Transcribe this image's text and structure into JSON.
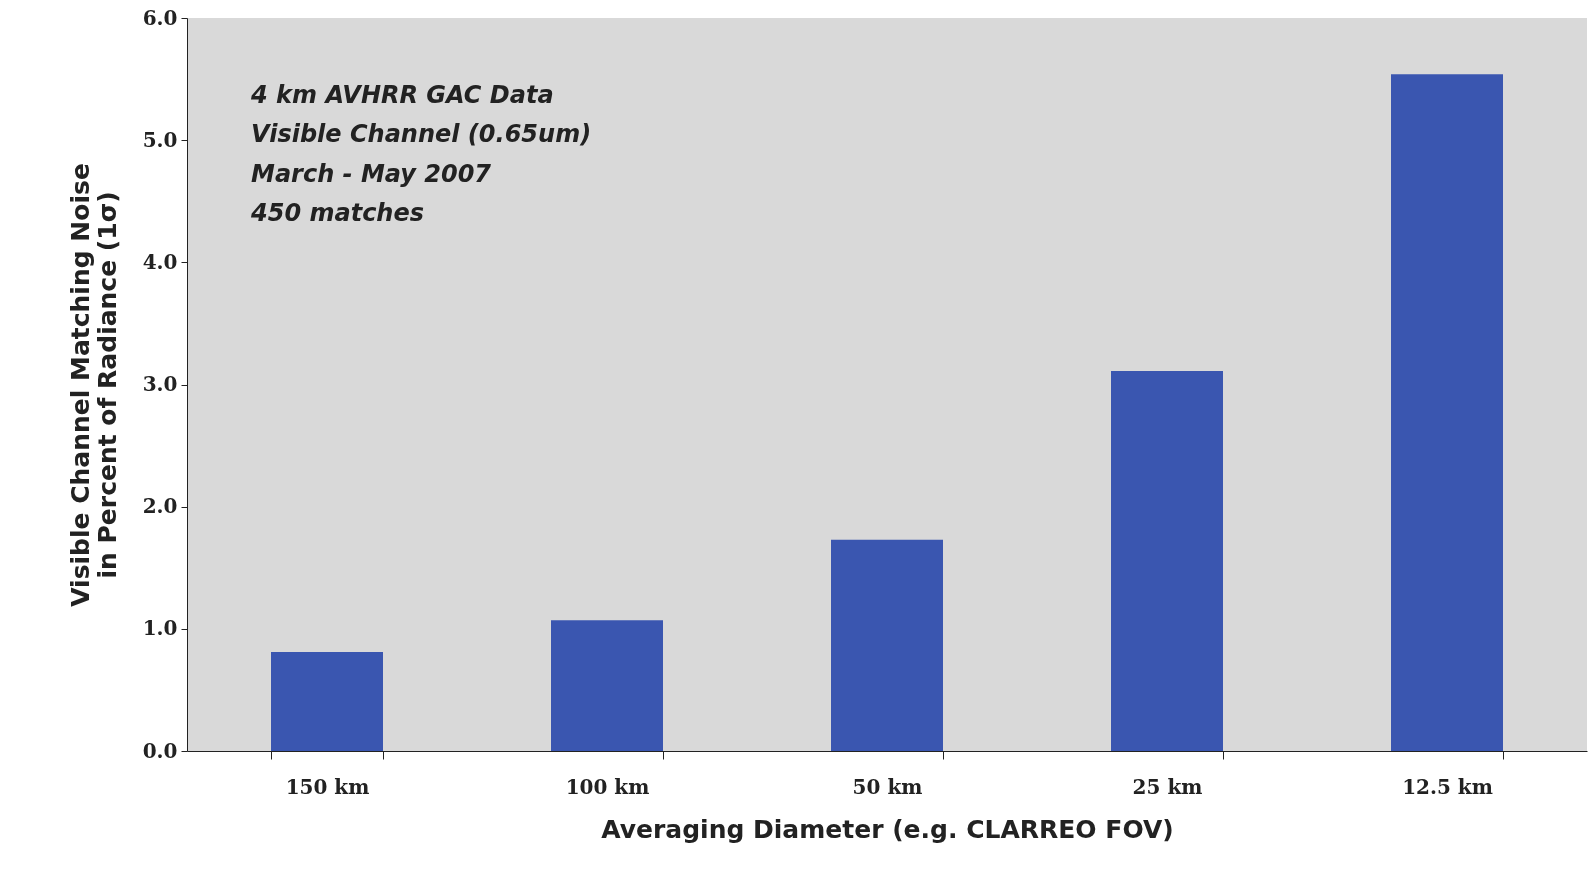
{
  "chart_data": {
    "type": "bar",
    "xlabel": "Averaging Diameter (e.g. CLARREO FOV)",
    "ylabel": "Visible Channel Matching Noise\nin Percent of Radiance (1σ)",
    "categories": [
      "150 km",
      "100 km",
      "50 km",
      "25 km",
      "12.5 km"
    ],
    "values": [
      0.81,
      1.07,
      1.73,
      3.11,
      5.54
    ],
    "color": "#3a56b0",
    "ylim": [
      0,
      6
    ],
    "yticks": [
      {
        "value": 0,
        "label": "0.0"
      },
      {
        "value": 1,
        "label": "1.0"
      },
      {
        "value": 2,
        "label": "2.0"
      },
      {
        "value": 3,
        "label": "3.0"
      },
      {
        "value": 4,
        "label": "4.0"
      },
      {
        "value": 5,
        "label": "5.0"
      },
      {
        "value": 6,
        "label": "6.0"
      }
    ],
    "annotations": [
      "4 km AVHRR GAC Data",
      "Visible Channel (0.65um)",
      "March - May 2007",
      "450 matches"
    ],
    "grid": false
  }
}
